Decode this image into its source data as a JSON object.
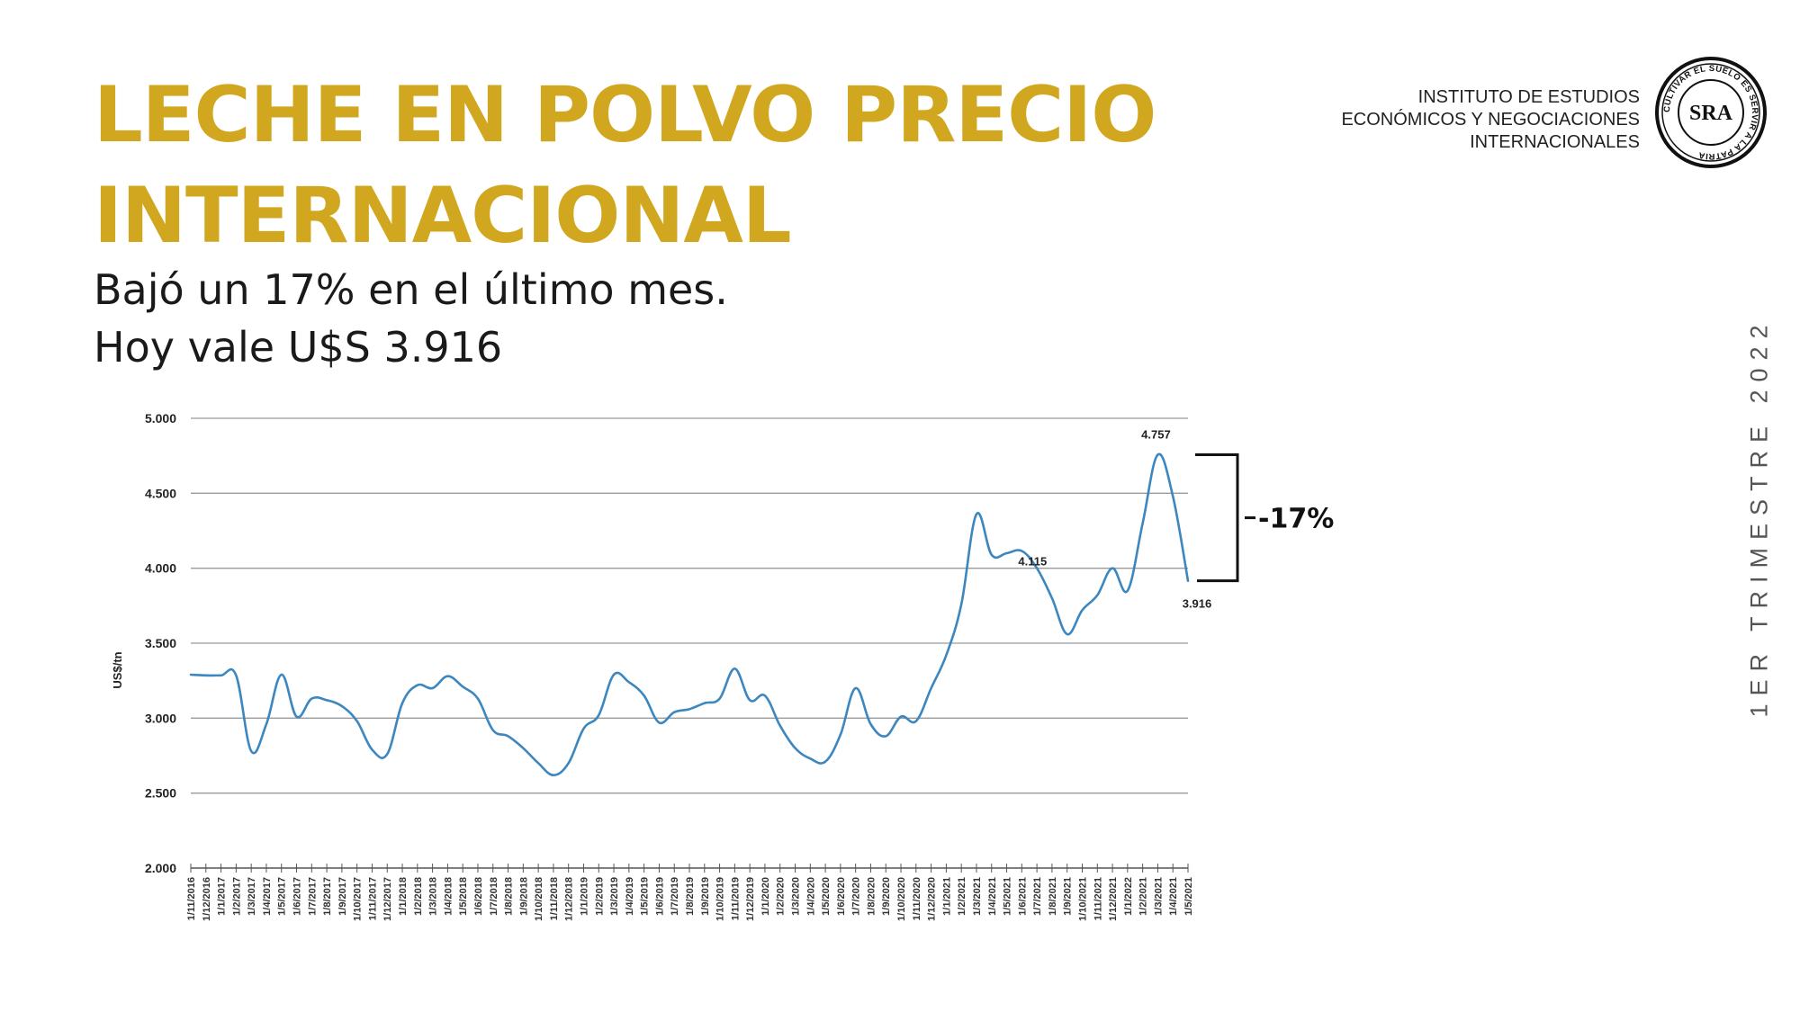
{
  "header": {
    "title_line1": "LECHE EN POLVO PRECIO",
    "title_line2": "INTERNACIONAL",
    "subtitle_line1": "Bajó un 17% en el último mes.",
    "subtitle_line2": "Hoy vale U$S 3.916",
    "title_color": "#D1A720"
  },
  "institute": {
    "line1": "INSTITUTO DE ESTUDIOS",
    "line2": "ECONÓMICOS Y NEGOCIACIONES",
    "line3": "INTERNACIONALES",
    "logo_text": "SRA",
    "logo_ring_text": "CULTIVAR EL SUELO ES SERVIR A LA PATRIA"
  },
  "side_label": "1ER TRIMESTRE 2022",
  "chart_data": {
    "type": "line",
    "ylabel": "US$/tn",
    "ylim": [
      2000,
      5000
    ],
    "yticks": [
      "5.000",
      "4.500",
      "4.000",
      "3.500",
      "3.000",
      "2.500",
      "2.000"
    ],
    "grid": true,
    "line_color": "#3C87BF",
    "categories": [
      "1/11/2016",
      "1/12/2016",
      "1/1/2017",
      "1/2/2017",
      "1/3/2017",
      "1/4/2017",
      "1/5/2017",
      "1/6/2017",
      "1/7/2017",
      "1/8/2017",
      "1/9/2017",
      "1/10/2017",
      "1/11/2017",
      "1/12/2017",
      "1/1/2018",
      "1/2/2018",
      "1/3/2018",
      "1/4/2018",
      "1/5/2018",
      "1/6/2018",
      "1/7/2018",
      "1/8/2018",
      "1/9/2018",
      "1/10/2018",
      "1/11/2018",
      "1/12/2018",
      "1/1/2019",
      "1/2/2019",
      "1/3/2019",
      "1/4/2019",
      "1/5/2019",
      "1/6/2019",
      "1/7/2019",
      "1/8/2019",
      "1/9/2019",
      "1/10/2019",
      "1/11/2019",
      "1/12/2019",
      "1/1/2020",
      "1/2/2020",
      "1/3/2020",
      "1/4/2020",
      "1/5/2020",
      "1/6/2020",
      "1/7/2020",
      "1/8/2020",
      "1/9/2020",
      "1/10/2020",
      "1/11/2020",
      "1/12/2020",
      "1/1/2021",
      "1/2/2021",
      "1/3/2021",
      "1/4/2021",
      "1/5/2021",
      "1/6/2021",
      "1/7/2021",
      "1/8/2021",
      "1/9/2021",
      "1/10/2021",
      "1/11/2021",
      "1/12/2021",
      "1/1/2022",
      "1/2/2021",
      "1/3/2021",
      "1/4/2021",
      "1/5/2021"
    ],
    "values": [
      3290,
      3285,
      3285,
      3285,
      2780,
      2960,
      3290,
      3010,
      3130,
      3120,
      3080,
      2980,
      2790,
      2760,
      3100,
      3220,
      3200,
      3280,
      3210,
      3130,
      2920,
      2880,
      2800,
      2700,
      2620,
      2700,
      2930,
      3020,
      3290,
      3240,
      3150,
      2970,
      3040,
      3060,
      3100,
      3130,
      3330,
      3120,
      3150,
      2950,
      2800,
      2730,
      2710,
      2890,
      3200,
      2960,
      2880,
      3010,
      2980,
      3200,
      3420,
      3760,
      4360,
      4090,
      4100,
      4115,
      4000,
      3800,
      3560,
      3720,
      3820,
      4000,
      3850,
      4300,
      4757,
      4480,
      3916
    ],
    "annotations": [
      {
        "label": "4.757",
        "index": 64
      },
      {
        "label": "4.115",
        "index": 55
      },
      {
        "label": "3.916",
        "index": 66
      }
    ],
    "bracket_label": "-17%"
  }
}
